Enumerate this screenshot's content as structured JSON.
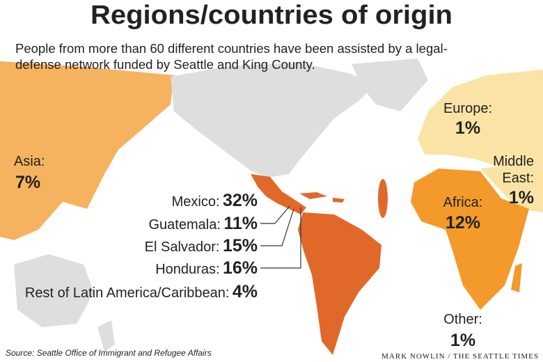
{
  "header": {
    "title": "Regions/countries of origin",
    "subtitle_lines": [
      "People from more than 60 different countries have been assisted by a legal-",
      "defense network funded by Seattle and King County."
    ]
  },
  "regions": [
    {
      "name_lines": [
        "Asia:"
      ],
      "share": "7%"
    },
    {
      "name_lines": [
        "Europe:"
      ],
      "share": "1%"
    },
    {
      "name_lines": [
        "Middle",
        "East:"
      ],
      "share": "1%"
    },
    {
      "name_lines": [
        "Africa:"
      ],
      "share": "12%"
    },
    {
      "name_lines": [
        "Other:"
      ],
      "share": "1%"
    }
  ],
  "latin_america": [
    {
      "name": "Mexico:",
      "share": "32%"
    },
    {
      "name": "Guatemala:",
      "share": "11%"
    },
    {
      "name": "El Salvador:",
      "share": "15%"
    },
    {
      "name": "Honduras:",
      "share": "16%"
    },
    {
      "name": "Rest of Latin America/Caribbean:",
      "share": "4%"
    }
  ],
  "footer": {
    "source": "Source: Seattle Office of Immigrant and Refugee Affairs",
    "credit": "MARK NOWLIN / THE SEATTLE TIMES"
  }
}
